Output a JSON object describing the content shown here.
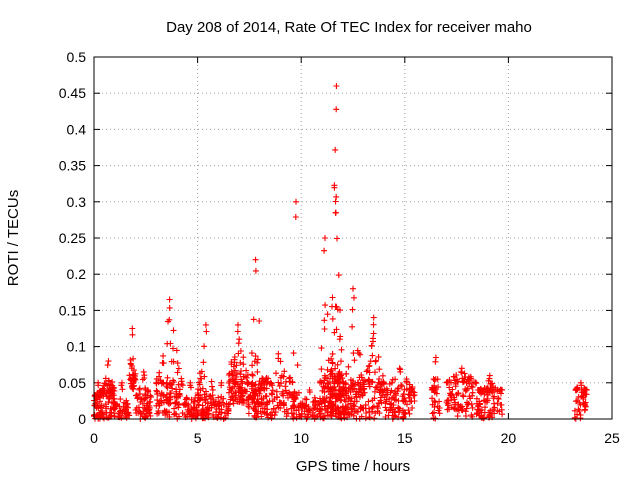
{
  "chart_data": {
    "type": "scatter",
    "title": "Day 208 of 2014, Rate Of TEC Index for receiver maho",
    "xlabel": "GPS time / hours",
    "ylabel": "ROTI / TECUs",
    "xlim": [
      0,
      25
    ],
    "ylim": [
      0,
      0.5
    ],
    "xticks": [
      "0",
      "5",
      "10",
      "15",
      "20",
      "25"
    ],
    "yticks": [
      "0",
      "0.05",
      "0.1",
      "0.15",
      "0.2",
      "0.25",
      "0.3",
      "0.35",
      "0.4",
      "0.45",
      "0.5"
    ],
    "grid": true,
    "marker": "+",
    "color": "#ff0000",
    "clusters": [
      {
        "x": [
          0.0,
          0.4
        ],
        "base": [
          0.0,
          0.03
        ],
        "peak": 0.05,
        "n": 50
      },
      {
        "x": [
          0.4,
          1.0
        ],
        "base": [
          0.0,
          0.04
        ],
        "peak": 0.08,
        "n": 70
      },
      {
        "x": [
          1.0,
          1.7
        ],
        "base": [
          0.0,
          0.02
        ],
        "peak": 0.05,
        "n": 40
      },
      {
        "x": [
          1.7,
          2.0
        ],
        "base": [
          0.04,
          0.06
        ],
        "peak": 0.125,
        "n": 35
      },
      {
        "x": [
          2.0,
          2.8
        ],
        "base": [
          0.0,
          0.03
        ],
        "peak": 0.065,
        "n": 60
      },
      {
        "x": [
          3.0,
          4.3
        ],
        "base": [
          0.0,
          0.05
        ],
        "peak": 0.165,
        "n": 110
      },
      {
        "x": [
          4.3,
          5.0
        ],
        "base": [
          0.0,
          0.02
        ],
        "peak": 0.05,
        "n": 40
      },
      {
        "x": [
          5.0,
          5.8
        ],
        "base": [
          0.0,
          0.04
        ],
        "peak": 0.13,
        "n": 70
      },
      {
        "x": [
          5.8,
          6.5
        ],
        "base": [
          0.0,
          0.02
        ],
        "peak": 0.05,
        "n": 40
      },
      {
        "x": [
          6.5,
          7.4
        ],
        "base": [
          0.02,
          0.06
        ],
        "peak": 0.13,
        "n": 90
      },
      {
        "x": [
          7.4,
          8.2
        ],
        "base": [
          0.0,
          0.05
        ],
        "peak": 0.22,
        "n": 90
      },
      {
        "x": [
          8.2,
          9.6
        ],
        "base": [
          0.0,
          0.05
        ],
        "peak": 0.09,
        "n": 90
      },
      {
        "x": [
          9.6,
          9.9
        ],
        "base": [
          0.0,
          0.04
        ],
        "peak": 0.3,
        "n": 25
      },
      {
        "x": [
          9.9,
          10.9
        ],
        "base": [
          0.0,
          0.02
        ],
        "peak": 0.04,
        "n": 50
      },
      {
        "x": [
          10.9,
          11.4
        ],
        "base": [
          0.0,
          0.05
        ],
        "peak": 0.25,
        "n": 60
      },
      {
        "x": [
          11.4,
          12.0
        ],
        "base": [
          0.0,
          0.06
        ],
        "peak": 0.46,
        "n": 130
      },
      {
        "x": [
          12.0,
          13.0
        ],
        "base": [
          0.0,
          0.05
        ],
        "peak": 0.18,
        "n": 110
      },
      {
        "x": [
          13.0,
          14.0
        ],
        "base": [
          0.0,
          0.05
        ],
        "peak": 0.14,
        "n": 80
      },
      {
        "x": [
          14.0,
          15.5
        ],
        "base": [
          0.0,
          0.04
        ],
        "peak": 0.07,
        "n": 100
      },
      {
        "x": [
          16.3,
          16.7
        ],
        "base": [
          0.0,
          0.04
        ],
        "peak": 0.085,
        "n": 30
      },
      {
        "x": [
          17.0,
          18.5
        ],
        "base": [
          0.0,
          0.05
        ],
        "peak": 0.07,
        "n": 100
      },
      {
        "x": [
          18.5,
          19.7
        ],
        "base": [
          0.0,
          0.04
        ],
        "peak": 0.06,
        "n": 90
      },
      {
        "x": [
          23.2,
          23.8
        ],
        "base": [
          0.0,
          0.04
        ],
        "peak": 0.05,
        "n": 45
      }
    ]
  }
}
